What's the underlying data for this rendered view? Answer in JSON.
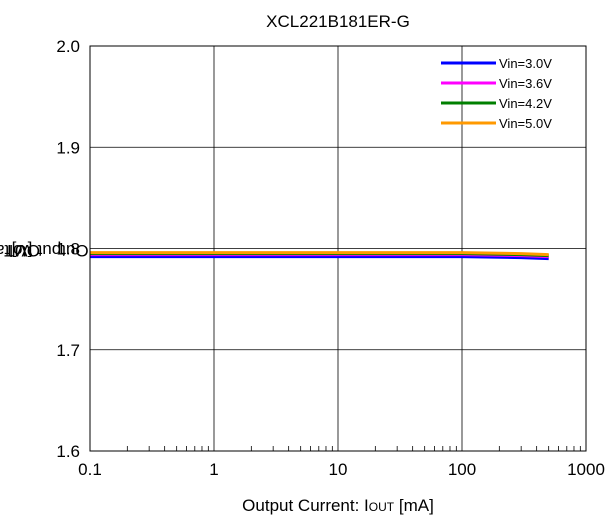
{
  "chart_data": {
    "type": "line",
    "title": "XCL221B181ER-G",
    "xlabel": {
      "main": "Output Current: I",
      "sub": "OUT",
      "unit": " [mA]"
    },
    "ylabel": {
      "main": "Output Voltage: V",
      "sub": "OUT",
      "unit": " [V]"
    },
    "x_scale": "log",
    "xlim": [
      0.1,
      1000
    ],
    "ylim": [
      1.6,
      2.0
    ],
    "x_ticks": [
      "0.1",
      "1",
      "10",
      "100",
      "1000"
    ],
    "y_ticks": [
      "1.6",
      "1.7",
      "1.8",
      "1.9",
      "2.0"
    ],
    "grid": true,
    "legend_position": "top-right",
    "series": [
      {
        "name": "Vin=3.0V",
        "color": "#0000ff",
        "x": [
          0.1,
          1,
          10,
          100,
          300,
          500
        ],
        "y": [
          1.792,
          1.792,
          1.792,
          1.792,
          1.791,
          1.79
        ]
      },
      {
        "name": "Vin=3.6V",
        "color": "#ff00ff",
        "x": [
          0.1,
          1,
          10,
          100,
          300,
          500
        ],
        "y": [
          1.794,
          1.794,
          1.794,
          1.794,
          1.793,
          1.792
        ]
      },
      {
        "name": "Vin=4.2V",
        "color": "#008000",
        "x": [
          0.1,
          1,
          10,
          100,
          300,
          500
        ],
        "y": [
          1.795,
          1.795,
          1.795,
          1.795,
          1.794,
          1.793
        ]
      },
      {
        "name": "Vin=5.0V",
        "color": "#ff9900",
        "x": [
          0.1,
          1,
          10,
          100,
          300,
          500
        ],
        "y": [
          1.796,
          1.796,
          1.796,
          1.796,
          1.795,
          1.794
        ]
      }
    ]
  }
}
